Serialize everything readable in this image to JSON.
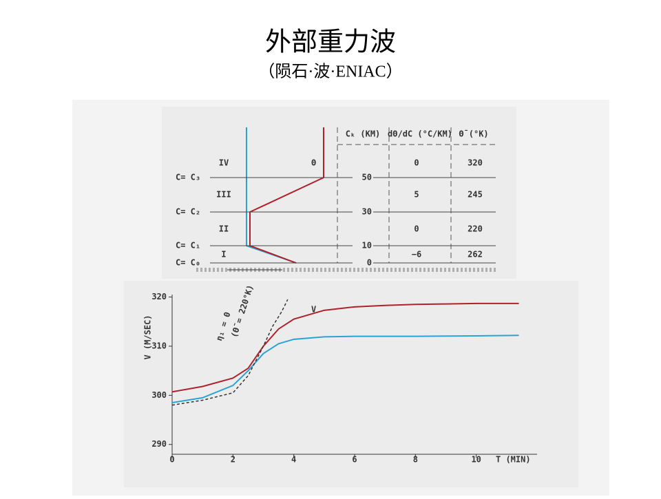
{
  "header": {
    "title": "外部重力波",
    "subtitle": "（陨石·波·ENIAC）"
  },
  "profile": {
    "columns": [
      "Cₖ (KM)",
      "dΘ/dC (°C/KM)",
      "Θ̄ (°K)"
    ],
    "symbol": "Θ",
    "layers": [
      {
        "name": "IV",
        "gradient": "0",
        "theta": "320"
      },
      {
        "name": "III",
        "gradient": "5",
        "theta": "245"
      },
      {
        "name": "II",
        "gradient": "0",
        "theta": "220"
      },
      {
        "name": "I",
        "gradient": "−6",
        "theta": "262"
      }
    ],
    "levels": [
      {
        "label": "C= C₃",
        "height": "50"
      },
      {
        "label": "C= C₂",
        "height": "30"
      },
      {
        "label": "C= C₁",
        "height": "10"
      },
      {
        "label": "C= C₀",
        "height": "0"
      }
    ]
  },
  "chart_data": {
    "type": "line",
    "xlabel": "T (MIN)",
    "ylabel": "V (M/SEC)",
    "annotations": [
      "V",
      "η₁ = 0",
      "(Θ̄ = 220°K)"
    ],
    "xlim": [
      0,
      12
    ],
    "ylim": [
      288,
      320.5
    ],
    "xticks": [
      0,
      2,
      4,
      6,
      8,
      10
    ],
    "yticks": [
      290,
      300,
      310,
      320
    ],
    "series": [
      {
        "color": "#b0202a",
        "dash": false,
        "x": [
          0,
          1,
          2,
          2.5,
          3,
          3.5,
          4,
          5,
          6,
          7,
          8,
          9,
          10,
          11.4
        ],
        "values": [
          300.7,
          301.8,
          303.5,
          305.5,
          310,
          313.5,
          315.5,
          317.3,
          318,
          318.3,
          318.5,
          318.6,
          318.7,
          318.7
        ]
      },
      {
        "color": "#2aa3d4",
        "dash": false,
        "x": [
          0,
          1,
          2,
          2.5,
          3,
          3.5,
          4,
          5,
          6,
          8,
          10,
          11.4
        ],
        "values": [
          298.5,
          299.5,
          302,
          305,
          308.5,
          310.5,
          311.4,
          311.9,
          312,
          312,
          312.1,
          312.2
        ]
      },
      {
        "color": "#333333",
        "dash": true,
        "x": [
          0,
          1,
          2,
          2.5,
          3,
          3.3,
          3.6,
          3.8
        ],
        "values": [
          298,
          299,
          300.5,
          304,
          310,
          314,
          317,
          319.5
        ]
      }
    ]
  }
}
